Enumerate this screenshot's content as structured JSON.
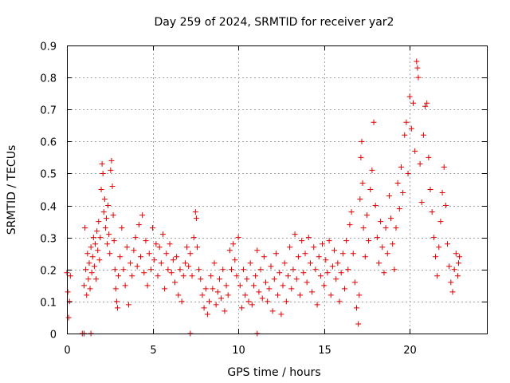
{
  "chart_data": {
    "type": "scatter",
    "title": "Day 259 of 2024, SRMTID for receiver yar2",
    "xlabel": "GPS time / hours",
    "ylabel": "SRMTID / TECUs",
    "xlim": [
      0,
      24.5
    ],
    "ylim": [
      0,
      0.9
    ],
    "xticks": [
      0,
      5,
      10,
      15,
      20
    ],
    "xtick_labels": [
      "0",
      "5",
      "10",
      "15",
      "20"
    ],
    "yticks": [
      0,
      0.1,
      0.2,
      0.3,
      0.4,
      0.5,
      0.6,
      0.7,
      0.8,
      0.9
    ],
    "ytick_labels": [
      "0",
      "0.1",
      "0.2",
      "0.3",
      "0.4",
      "0.5",
      "0.6",
      "0.7",
      "0.8",
      "0.9"
    ],
    "grid": true,
    "marker": "plus",
    "color": "#e00000",
    "series": [
      {
        "name": "SRMTID",
        "points": [
          [
            0.0,
            0.19
          ],
          [
            0.05,
            0.13
          ],
          [
            0.1,
            0.05
          ],
          [
            0.15,
            0.1
          ],
          [
            0.2,
            0.18
          ],
          [
            0.9,
            0.0
          ],
          [
            1.0,
            0.0
          ],
          [
            1.4,
            0.0
          ],
          [
            7.2,
            0.0
          ],
          [
            11.1,
            0.0
          ],
          [
            1.0,
            0.15
          ],
          [
            1.05,
            0.33
          ],
          [
            1.1,
            0.2
          ],
          [
            1.15,
            0.12
          ],
          [
            1.2,
            0.25
          ],
          [
            1.25,
            0.17
          ],
          [
            1.3,
            0.22
          ],
          [
            1.35,
            0.14
          ],
          [
            1.4,
            0.27
          ],
          [
            1.45,
            0.19
          ],
          [
            1.5,
            0.24
          ],
          [
            1.55,
            0.3
          ],
          [
            1.6,
            0.21
          ],
          [
            1.65,
            0.28
          ],
          [
            1.7,
            0.17
          ],
          [
            1.75,
            0.32
          ],
          [
            1.8,
            0.26
          ],
          [
            1.85,
            0.35
          ],
          [
            1.9,
            0.23
          ],
          [
            1.95,
            0.3
          ],
          [
            2.0,
            0.45
          ],
          [
            2.05,
            0.53
          ],
          [
            2.1,
            0.5
          ],
          [
            2.15,
            0.38
          ],
          [
            2.2,
            0.42
          ],
          [
            2.25,
            0.33
          ],
          [
            2.3,
            0.36
          ],
          [
            2.35,
            0.28
          ],
          [
            2.4,
            0.4
          ],
          [
            2.45,
            0.31
          ],
          [
            2.5,
            0.25
          ],
          [
            2.55,
            0.51
          ],
          [
            2.6,
            0.54
          ],
          [
            2.65,
            0.46
          ],
          [
            2.7,
            0.37
          ],
          [
            2.75,
            0.29
          ],
          [
            2.8,
            0.2
          ],
          [
            2.85,
            0.14
          ],
          [
            2.9,
            0.1
          ],
          [
            2.95,
            0.08
          ],
          [
            3.0,
            0.18
          ],
          [
            3.1,
            0.24
          ],
          [
            3.2,
            0.33
          ],
          [
            3.3,
            0.2
          ],
          [
            3.4,
            0.15
          ],
          [
            3.5,
            0.27
          ],
          [
            3.6,
            0.09
          ],
          [
            3.7,
            0.22
          ],
          [
            3.8,
            0.18
          ],
          [
            3.9,
            0.26
          ],
          [
            4.0,
            0.3
          ],
          [
            4.1,
            0.21
          ],
          [
            4.2,
            0.34
          ],
          [
            4.3,
            0.24
          ],
          [
            4.4,
            0.37
          ],
          [
            4.5,
            0.19
          ],
          [
            4.6,
            0.29
          ],
          [
            4.7,
            0.15
          ],
          [
            4.8,
            0.25
          ],
          [
            4.9,
            0.2
          ],
          [
            5.0,
            0.33
          ],
          [
            5.1,
            0.23
          ],
          [
            5.2,
            0.28
          ],
          [
            5.3,
            0.18
          ],
          [
            5.4,
            0.27
          ],
          [
            5.5,
            0.22
          ],
          [
            5.6,
            0.31
          ],
          [
            5.7,
            0.14
          ],
          [
            5.8,
            0.25
          ],
          [
            5.9,
            0.2
          ],
          [
            6.0,
            0.28
          ],
          [
            6.1,
            0.19
          ],
          [
            6.2,
            0.23
          ],
          [
            6.3,
            0.16
          ],
          [
            6.4,
            0.24
          ],
          [
            6.5,
            0.12
          ],
          [
            6.6,
            0.2
          ],
          [
            6.7,
            0.1
          ],
          [
            6.8,
            0.18
          ],
          [
            6.9,
            0.22
          ],
          [
            7.0,
            0.27
          ],
          [
            7.1,
            0.21
          ],
          [
            7.2,
            0.25
          ],
          [
            7.3,
            0.18
          ],
          [
            7.4,
            0.3
          ],
          [
            7.5,
            0.38
          ],
          [
            7.55,
            0.36
          ],
          [
            7.6,
            0.27
          ],
          [
            7.7,
            0.2
          ],
          [
            7.8,
            0.17
          ],
          [
            7.9,
            0.12
          ],
          [
            8.0,
            0.08
          ],
          [
            8.1,
            0.14
          ],
          [
            8.2,
            0.06
          ],
          [
            8.3,
            0.1
          ],
          [
            8.4,
            0.18
          ],
          [
            8.5,
            0.14
          ],
          [
            8.6,
            0.22
          ],
          [
            8.7,
            0.09
          ],
          [
            8.8,
            0.13
          ],
          [
            8.9,
            0.17
          ],
          [
            9.0,
            0.11
          ],
          [
            9.1,
            0.2
          ],
          [
            9.2,
            0.07
          ],
          [
            9.3,
            0.15
          ],
          [
            9.4,
            0.12
          ],
          [
            9.5,
            0.26
          ],
          [
            9.6,
            0.2
          ],
          [
            9.7,
            0.28
          ],
          [
            9.8,
            0.23
          ],
          [
            9.9,
            0.18
          ],
          [
            10.0,
            0.3
          ],
          [
            10.1,
            0.15
          ],
          [
            10.2,
            0.08
          ],
          [
            10.3,
            0.2
          ],
          [
            10.4,
            0.12
          ],
          [
            10.5,
            0.17
          ],
          [
            10.6,
            0.1
          ],
          [
            10.7,
            0.22
          ],
          [
            10.8,
            0.09
          ],
          [
            10.9,
            0.15
          ],
          [
            11.0,
            0.18
          ],
          [
            11.1,
            0.26
          ],
          [
            11.2,
            0.13
          ],
          [
            11.3,
            0.2
          ],
          [
            11.4,
            0.11
          ],
          [
            11.5,
            0.24
          ],
          [
            11.6,
            0.16
          ],
          [
            11.7,
            0.1
          ],
          [
            11.8,
            0.14
          ],
          [
            11.9,
            0.21
          ],
          [
            12.0,
            0.07
          ],
          [
            12.1,
            0.17
          ],
          [
            12.2,
            0.25
          ],
          [
            12.3,
            0.12
          ],
          [
            12.4,
            0.19
          ],
          [
            12.5,
            0.06
          ],
          [
            12.6,
            0.15
          ],
          [
            12.7,
            0.22
          ],
          [
            12.8,
            0.1
          ],
          [
            12.9,
            0.18
          ],
          [
            13.0,
            0.27
          ],
          [
            13.1,
            0.14
          ],
          [
            13.2,
            0.2
          ],
          [
            13.3,
            0.31
          ],
          [
            13.4,
            0.17
          ],
          [
            13.5,
            0.24
          ],
          [
            13.6,
            0.12
          ],
          [
            13.7,
            0.29
          ],
          [
            13.8,
            0.19
          ],
          [
            13.9,
            0.25
          ],
          [
            14.0,
            0.16
          ],
          [
            14.1,
            0.3
          ],
          [
            14.2,
            0.22
          ],
          [
            14.3,
            0.13
          ],
          [
            14.4,
            0.27
          ],
          [
            14.5,
            0.2
          ],
          [
            14.6,
            0.09
          ],
          [
            14.7,
            0.24
          ],
          [
            14.8,
            0.18
          ],
          [
            14.9,
            0.28
          ],
          [
            15.0,
            0.15
          ],
          [
            15.1,
            0.23
          ],
          [
            15.2,
            0.19
          ],
          [
            15.3,
            0.29
          ],
          [
            15.4,
            0.12
          ],
          [
            15.5,
            0.21
          ],
          [
            15.6,
            0.26
          ],
          [
            15.7,
            0.17
          ],
          [
            15.8,
            0.22
          ],
          [
            15.9,
            0.1
          ],
          [
            16.0,
            0.19
          ],
          [
            16.1,
            0.25
          ],
          [
            16.2,
            0.14
          ],
          [
            16.3,
            0.29
          ],
          [
            16.4,
            0.2
          ],
          [
            16.5,
            0.34
          ],
          [
            16.6,
            0.38
          ],
          [
            16.7,
            0.25
          ],
          [
            16.8,
            0.16
          ],
          [
            16.9,
            0.08
          ],
          [
            17.0,
            0.03
          ],
          [
            17.05,
            0.12
          ],
          [
            17.1,
            0.42
          ],
          [
            17.15,
            0.55
          ],
          [
            17.2,
            0.6
          ],
          [
            17.25,
            0.47
          ],
          [
            17.3,
            0.33
          ],
          [
            17.4,
            0.24
          ],
          [
            17.5,
            0.37
          ],
          [
            17.6,
            0.29
          ],
          [
            17.7,
            0.45
          ],
          [
            17.8,
            0.51
          ],
          [
            17.9,
            0.66
          ],
          [
            18.0,
            0.4
          ],
          [
            18.1,
            0.3
          ],
          [
            18.2,
            0.22
          ],
          [
            18.3,
            0.35
          ],
          [
            18.4,
            0.27
          ],
          [
            18.5,
            0.19
          ],
          [
            18.6,
            0.33
          ],
          [
            18.7,
            0.25
          ],
          [
            18.8,
            0.43
          ],
          [
            18.9,
            0.36
          ],
          [
            19.0,
            0.28
          ],
          [
            19.1,
            0.2
          ],
          [
            19.2,
            0.33
          ],
          [
            19.3,
            0.47
          ],
          [
            19.4,
            0.39
          ],
          [
            19.5,
            0.52
          ],
          [
            19.6,
            0.44
          ],
          [
            19.7,
            0.62
          ],
          [
            19.8,
            0.66
          ],
          [
            19.9,
            0.5
          ],
          [
            20.0,
            0.74
          ],
          [
            20.1,
            0.64
          ],
          [
            20.2,
            0.72
          ],
          [
            20.3,
            0.57
          ],
          [
            20.4,
            0.85
          ],
          [
            20.45,
            0.83
          ],
          [
            20.5,
            0.8
          ],
          [
            20.6,
            0.53
          ],
          [
            20.7,
            0.41
          ],
          [
            20.8,
            0.62
          ],
          [
            20.9,
            0.71
          ],
          [
            21.0,
            0.72
          ],
          [
            21.1,
            0.55
          ],
          [
            21.2,
            0.45
          ],
          [
            21.3,
            0.38
          ],
          [
            21.4,
            0.3
          ],
          [
            21.5,
            0.24
          ],
          [
            21.6,
            0.18
          ],
          [
            21.7,
            0.27
          ],
          [
            21.8,
            0.35
          ],
          [
            21.9,
            0.44
          ],
          [
            22.0,
            0.52
          ],
          [
            22.1,
            0.4
          ],
          [
            22.2,
            0.28
          ],
          [
            22.3,
            0.21
          ],
          [
            22.4,
            0.16
          ],
          [
            22.5,
            0.13
          ],
          [
            22.6,
            0.2
          ],
          [
            22.7,
            0.25
          ],
          [
            22.8,
            0.18
          ],
          [
            22.85,
            0.22
          ],
          [
            22.9,
            0.24
          ]
        ]
      }
    ]
  }
}
